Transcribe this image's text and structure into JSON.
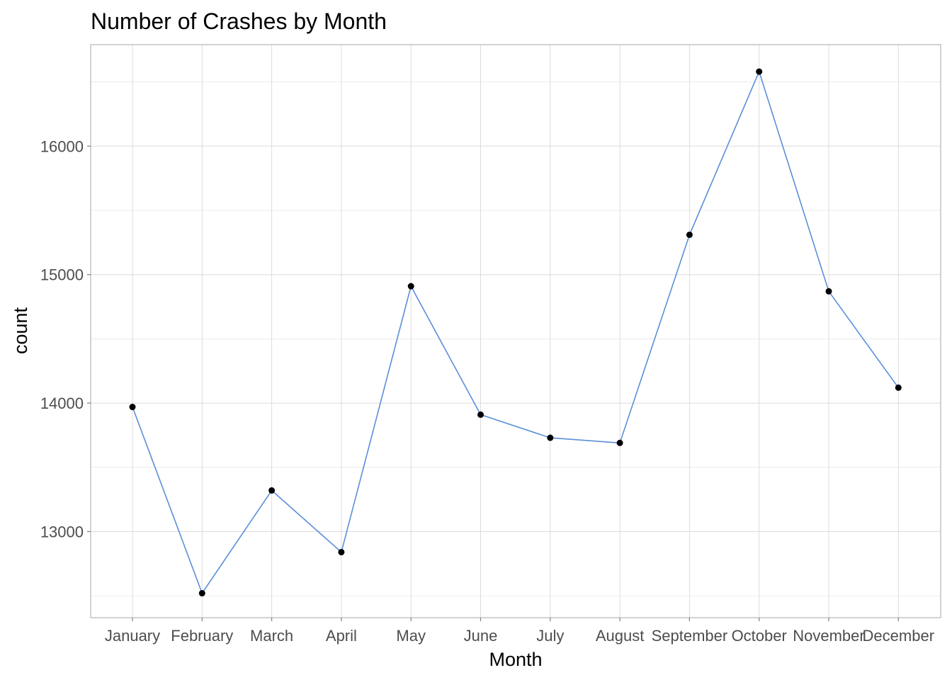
{
  "chart_data": {
    "type": "line",
    "title": "Number of Crashes by Month",
    "xlabel": "Month",
    "ylabel": "count",
    "categories": [
      "January",
      "February",
      "March",
      "April",
      "May",
      "June",
      "July",
      "August",
      "September",
      "October",
      "November",
      "December"
    ],
    "values": [
      13970,
      12520,
      13320,
      12840,
      14910,
      13910,
      13730,
      13690,
      15310,
      16580,
      14870,
      14120
    ],
    "ylim": [
      12330,
      16790
    ],
    "yticks": [
      13000,
      14000,
      15000,
      16000
    ],
    "grid": true,
    "line_color": "#5b8fd9",
    "point_color": "#000000"
  }
}
